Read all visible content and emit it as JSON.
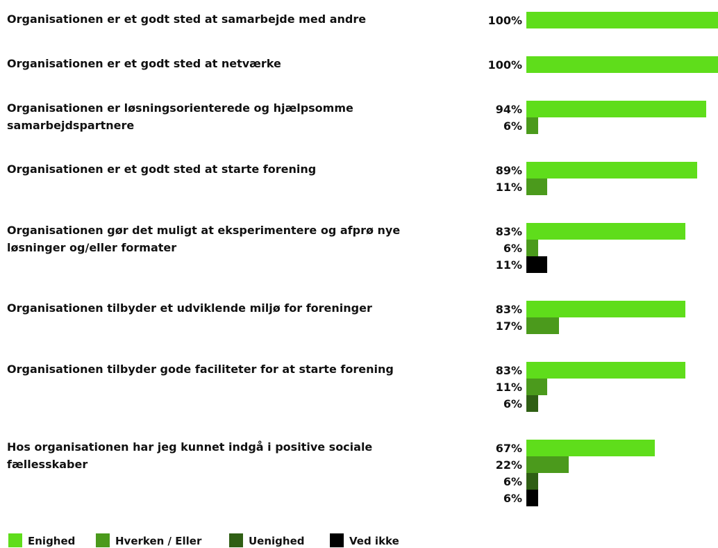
{
  "chart_data": {
    "type": "grouped-horizontal-bar",
    "categories": [
      "Organisationen er et godt sted at samarbejde med andre",
      "Organisationen er et godt sted at netværke",
      "Organisationen er løsningsorienterede og hjælpsomme samarbejdspartnere",
      "Organisationen er et godt sted at starte forening",
      "Organisationen gør det muligt at eksperimentere og afprø nye løsninger og/eller formater",
      "Organisationen tilbyder et udviklende miljø for foreninger",
      "Organisationen tilbyder gode faciliteter for at starte forening",
      "Hos organisationen har jeg kunnet indgå i positive sociale fællesskaber"
    ],
    "xlim": [
      0,
      100
    ],
    "series": [
      {
        "name": "Enighed",
        "color": "#5fdd1b",
        "values": [
          100,
          100,
          94,
          89,
          83,
          83,
          83,
          67
        ],
        "value_labels": [
          "100%",
          "100%",
          "94%",
          "89%",
          "83%",
          "83%",
          "83%",
          "67%"
        ]
      },
      {
        "name": "Hverken / Eller",
        "color": "#4b9a1c",
        "values": [
          null,
          null,
          6,
          11,
          6,
          17,
          11,
          22
        ],
        "value_labels": [
          null,
          null,
          "6%",
          "11%",
          "6%",
          "17%",
          "11%",
          "22%"
        ]
      },
      {
        "name": "Uenighed",
        "color": "#2f5f14",
        "values": [
          null,
          null,
          null,
          null,
          null,
          null,
          6,
          6
        ],
        "value_labels": [
          null,
          null,
          null,
          null,
          null,
          null,
          "6%",
          "6%"
        ]
      },
      {
        "name": "Ved ikke",
        "color": "#000000",
        "values": [
          null,
          null,
          null,
          null,
          11,
          null,
          null,
          6
        ],
        "value_labels": [
          null,
          null,
          null,
          null,
          "11%",
          null,
          null,
          "6%"
        ]
      }
    ]
  }
}
